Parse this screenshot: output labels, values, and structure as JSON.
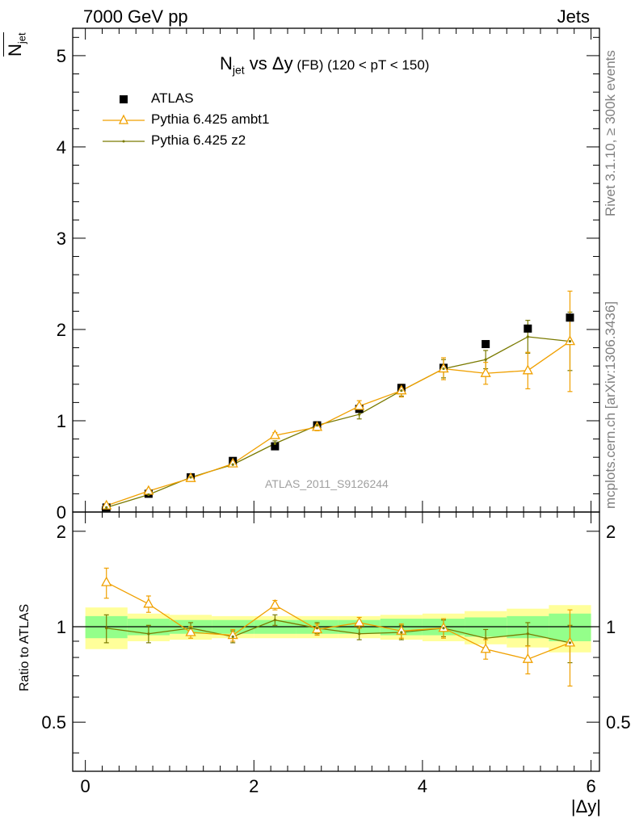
{
  "header": {
    "energy_label": "7000 GeV pp",
    "process_label": "Jets",
    "side_top": "Rivet 3.1.10, ≥ 300k events",
    "side_bottom": "mcplots.cern.ch [arXiv:1306.3436]"
  },
  "chart_data": {
    "type": "line",
    "title": {
      "n": "N",
      "n_sub": "jet",
      "vs": " vs ",
      "dy": "Δy",
      "fb": " (FB) ",
      "range": "(120 < pT < 150)"
    },
    "ylabel": {
      "n": "N",
      "n_sub": "jet"
    },
    "ratio_ylabel": "Ratio to ATLAS",
    "xlabel": "|Δy|",
    "watermark": "ATLAS_2011_S9126244",
    "xlim": [
      -0.15,
      6.1
    ],
    "ylim": [
      0,
      5.3
    ],
    "ratio_ylim": [
      0.35,
      2.3
    ],
    "ratio_log": true,
    "x_ticks": [
      "0",
      "2",
      "4",
      "6"
    ],
    "y_ticks": [
      "0",
      "1",
      "2",
      "3",
      "4",
      "5"
    ],
    "ratio_ticks": [
      "0.5",
      "1",
      "2"
    ],
    "legend_position": "top-left",
    "x": [
      0.25,
      0.75,
      1.25,
      1.75,
      2.25,
      2.75,
      3.25,
      3.75,
      4.25,
      4.75,
      5.25,
      5.75
    ],
    "bin_edges": [
      0,
      0.5,
      1.0,
      1.5,
      2.0,
      2.5,
      3.0,
      3.5,
      4.0,
      4.5,
      5.0,
      5.5,
      6.0
    ],
    "series": [
      {
        "name": "ATLAS",
        "color": "#000000",
        "marker": "square",
        "values": [
          0.05,
          0.2,
          0.38,
          0.56,
          0.72,
          0.95,
          1.13,
          1.36,
          1.58,
          1.84,
          2.01,
          2.13
        ],
        "ratio_band_inner": [
          0.08,
          0.06,
          0.05,
          0.05,
          0.05,
          0.05,
          0.05,
          0.06,
          0.06,
          0.07,
          0.08,
          0.1
        ],
        "ratio_band_outer": [
          0.15,
          0.1,
          0.09,
          0.08,
          0.08,
          0.08,
          0.08,
          0.09,
          0.1,
          0.12,
          0.14,
          0.17
        ]
      },
      {
        "name": "Pythia 6.425 ambt1",
        "color": "#f0a000",
        "marker": "triangle",
        "values": [
          0.07,
          0.23,
          0.37,
          0.53,
          0.84,
          0.93,
          1.16,
          1.33,
          1.57,
          1.52,
          1.55,
          1.87
        ],
        "errors": [
          0.01,
          0.02,
          0.02,
          0.03,
          0.03,
          0.04,
          0.06,
          0.07,
          0.12,
          0.12,
          0.2,
          0.55
        ],
        "ratio": [
          1.38,
          1.18,
          0.96,
          0.94,
          1.17,
          0.98,
          1.03,
          0.97,
          0.99,
          0.85,
          0.79,
          0.89
        ],
        "ratio_errors": [
          0.15,
          0.07,
          0.04,
          0.04,
          0.04,
          0.04,
          0.04,
          0.05,
          0.07,
          0.06,
          0.08,
          0.24
        ]
      },
      {
        "name": "Pythia 6.425 z2",
        "color": "#7a7a00",
        "marker": "dot",
        "values": [
          0.05,
          0.19,
          0.38,
          0.52,
          0.75,
          0.95,
          1.07,
          1.33,
          1.57,
          1.67,
          1.92,
          1.87
        ],
        "errors": [
          0.005,
          0.01,
          0.01,
          0.02,
          0.03,
          0.04,
          0.05,
          0.06,
          0.1,
          0.1,
          0.18,
          0.32
        ],
        "ratio": [
          0.99,
          0.95,
          0.99,
          0.93,
          1.05,
          0.99,
          0.95,
          0.96,
          0.99,
          0.92,
          0.95,
          0.89
        ],
        "ratio_errors": [
          0.1,
          0.06,
          0.04,
          0.04,
          0.04,
          0.04,
          0.04,
          0.05,
          0.06,
          0.06,
          0.08,
          0.12
        ]
      }
    ]
  }
}
